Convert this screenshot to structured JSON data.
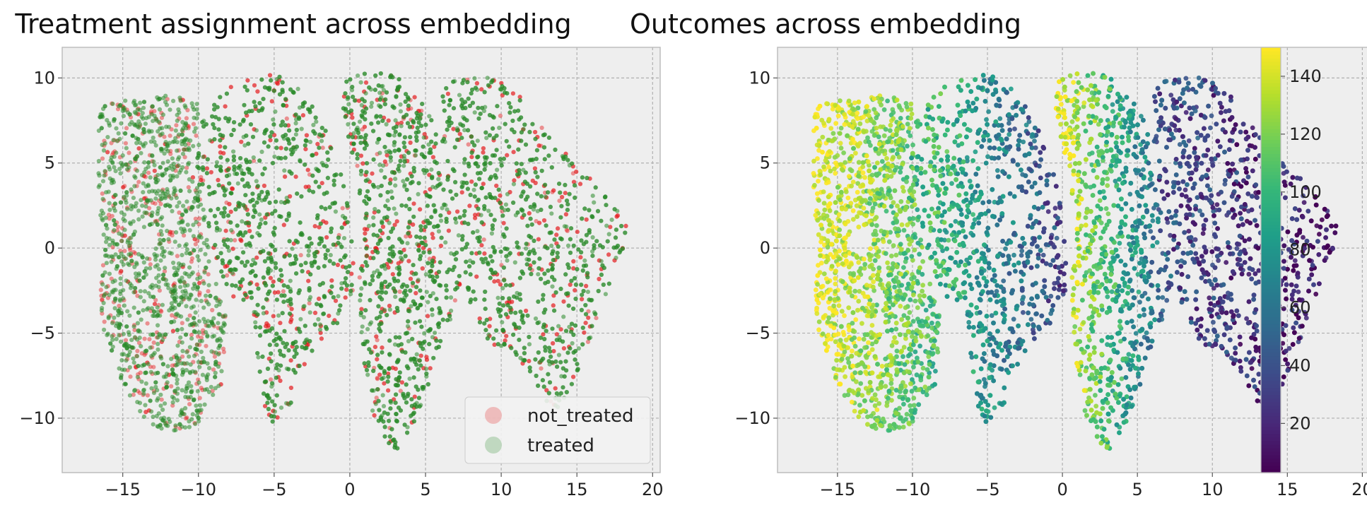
{
  "chart_data": [
    {
      "type": "scatter",
      "title": "Treatment assignment across embedding",
      "xlabel": "",
      "ylabel": "",
      "xlim": [
        -19,
        20.5
      ],
      "ylim": [
        -13.2,
        11.8
      ],
      "xticks": [
        -15,
        -10,
        -5,
        0,
        5,
        10,
        15,
        20
      ],
      "yticks": [
        -10,
        -5,
        0,
        5,
        10
      ],
      "xtick_labels": [
        "−15",
        "−10",
        "−5",
        "0",
        "5",
        "10",
        "15",
        "20"
      ],
      "ytick_labels": [
        "−10",
        "−5",
        "0",
        "5",
        "10"
      ],
      "grid": true,
      "legend_position": "bottom-right",
      "series": [
        {
          "name": "not_treated",
          "color": "#e41a1c",
          "alpha": 0.25
        },
        {
          "name": "treated",
          "color": "#2a8a2a",
          "alpha": 0.25
        }
      ],
      "clusters": [
        {
          "x": [
            -16.5,
            -10.5
          ],
          "y_top": [
            8.3,
            9
          ],
          "y_bottom": [
            -8.5,
            -11
          ],
          "bottom_x": -11.5
        },
        {
          "x": [
            -8,
            0.5
          ],
          "y_top": [
            9.5,
            10.5
          ],
          "y_bottom": [
            -3,
            -11
          ],
          "bottom_x": -5
        },
        {
          "x": [
            0,
            6
          ],
          "y_top": [
            10,
            10.5
          ],
          "y_bottom": [
            -9,
            -12
          ],
          "bottom_x": 3
        },
        {
          "x": [
            6,
            18.5
          ],
          "y_top": [
            10,
            10.3
          ],
          "y_bottom": [
            -5,
            -9.5
          ],
          "bottom_x": 13.5
        }
      ]
    },
    {
      "type": "scatter",
      "title": "Outcomes across embedding",
      "xlabel": "",
      "ylabel": "",
      "xlim": [
        -19,
        20.5
      ],
      "ylim": [
        -13.2,
        11.8
      ],
      "xticks": [
        -15,
        -10,
        -5,
        0,
        5,
        10,
        15,
        20
      ],
      "yticks": [
        -10,
        -5,
        0,
        5,
        10
      ],
      "xtick_labels": [
        "−15",
        "−10",
        "−5",
        "0",
        "5",
        "10",
        "15",
        "20"
      ],
      "ytick_labels": [
        "−10",
        "−5",
        "0",
        "5",
        "10"
      ],
      "grid": true,
      "colormap": "viridis",
      "color_range": [
        3,
        150
      ],
      "colorbar_ticks": [
        20,
        40,
        60,
        80,
        100,
        120,
        140
      ],
      "colorbar_tick_labels": [
        "20",
        "40",
        "60",
        "80",
        "100",
        "120",
        "140"
      ],
      "cluster_value_trend": [
        {
          "x_range": [
            -16.5,
            -8
          ],
          "value_range": [
            148,
            100
          ]
        },
        {
          "x_range": [
            -8,
            0.5
          ],
          "value_range": [
            100,
            30
          ]
        },
        {
          "x_range": [
            0,
            8
          ],
          "value_range": [
            145,
            35
          ]
        },
        {
          "x_range": [
            8,
            18.5
          ],
          "value_range": [
            35,
            10
          ]
        }
      ]
    }
  ],
  "colors": {
    "axes_background": "#eeeeee",
    "grid": "#b0b0b0",
    "not_treated": "#e41a1c",
    "treated": "#2a8a2a"
  }
}
